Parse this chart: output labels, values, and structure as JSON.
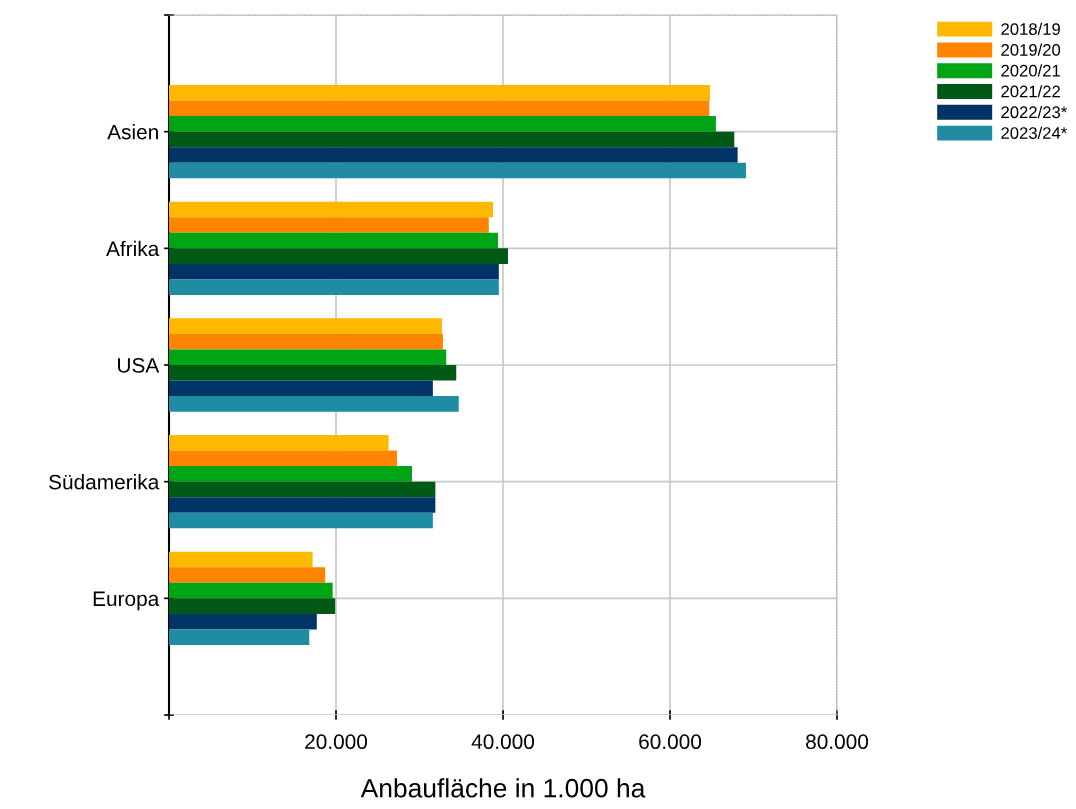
{
  "chart_data": {
    "type": "bar",
    "orientation": "horizontal",
    "xlabel": "Anbaufläche in 1.000 ha",
    "categories": [
      "Asien",
      "Afrika",
      "USA",
      "Südamerika",
      "Europa"
    ],
    "series": [
      {
        "name": "2018/19",
        "color": "#ffb800",
        "values": [
          64800,
          38800,
          32700,
          26300,
          17200
        ]
      },
      {
        "name": "2019/20",
        "color": "#ff8500",
        "values": [
          64700,
          38300,
          32800,
          27300,
          18700
        ]
      },
      {
        "name": "2020/21",
        "color": "#00a516",
        "values": [
          65500,
          39400,
          33200,
          29100,
          19600
        ]
      },
      {
        "name": "2021/22",
        "color": "#005a16",
        "values": [
          67700,
          40600,
          34400,
          31900,
          19900
        ]
      },
      {
        "name": "2022/23*",
        "color": "#003366",
        "values": [
          68100,
          39500,
          31600,
          31900,
          17700
        ]
      },
      {
        "name": "2023/24*",
        "color": "#1f8ca3",
        "values": [
          69100,
          39500,
          34700,
          31600,
          16800
        ]
      }
    ],
    "xlim": [
      0,
      80000
    ],
    "xticks": [
      {
        "value": 0,
        "label": null
      },
      {
        "value": 20000,
        "label": "20.000"
      },
      {
        "value": 40000,
        "label": "40.000"
      },
      {
        "value": 60000,
        "label": "60.000"
      },
      {
        "value": 80000,
        "label": "80.000"
      }
    ],
    "grid": true,
    "legend": "top right"
  }
}
